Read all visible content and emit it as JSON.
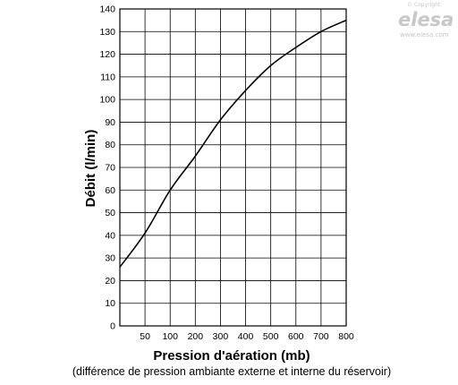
{
  "watermark": {
    "copyright": "© Copyright",
    "brand": "elesa",
    "url": "www.elesa.com"
  },
  "chart_data": {
    "type": "line",
    "xlabel": "Pression d'aération (mb)",
    "xsubtitle": "(différence de pression ambiante externe et interne du réservoir)",
    "ylabel": "Débit (l/min)",
    "xlim": [
      0,
      800
    ],
    "ylim": [
      0,
      140
    ],
    "grid": true,
    "x_ticks": [
      50,
      100,
      200,
      300,
      400,
      500,
      600,
      700,
      800
    ],
    "x_tick_labels": [
      "50",
      "100",
      "200",
      "300",
      "400",
      "500",
      "600",
      "700",
      "800"
    ],
    "y_ticks": [
      0,
      10,
      20,
      30,
      40,
      50,
      60,
      70,
      80,
      90,
      100,
      110,
      120,
      130,
      140
    ],
    "y_tick_labels": [
      "0",
      "10",
      "20",
      "30",
      "40",
      "50",
      "60",
      "70",
      "80",
      "90",
      "100",
      "110",
      "120",
      "130",
      "140"
    ],
    "series": [
      {
        "color": "#000000",
        "points": [
          [
            0,
            26
          ],
          [
            50,
            41
          ],
          [
            100,
            60
          ],
          [
            200,
            75
          ],
          [
            300,
            91
          ],
          [
            400,
            104
          ],
          [
            500,
            115
          ],
          [
            600,
            123
          ],
          [
            700,
            130
          ],
          [
            800,
            135
          ]
        ]
      }
    ]
  }
}
